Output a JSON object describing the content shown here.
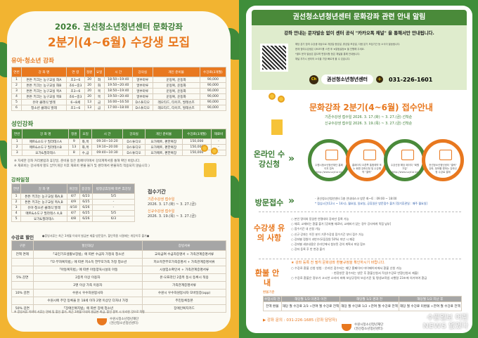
{
  "left": {
    "title": "2026. 권선청소년청년센터 문화강좌",
    "subtitle": "2분기(4~6월) 수강생 모집",
    "youth": {
      "heading": "유아·청소년 강좌",
      "columns": [
        "연번",
        "강 좌 명",
        "연 령",
        "정원",
        "요일",
        "시 간",
        "강의실",
        "개인 준비물",
        "수강료(3개월)"
      ],
      "rows": [
        [
          "1",
          "튼튼 키크는 농구교실 화A",
          "초3~6",
          "20",
          "화",
          "18:50~19:40",
          "얼쑤마루",
          "운동복, 운동화",
          "90,000"
        ],
        [
          "2",
          "튼튼 키크는 농구교실 화B",
          "초6~중3",
          "20",
          "화",
          "19:50~20:40",
          "얼쑤마루",
          "운동복, 운동화",
          "90,000"
        ],
        [
          "3",
          "튼튼 키크는 농구교실 목A",
          "초3~6",
          "20",
          "목",
          "18:50~19:40",
          "얼쑤마루",
          "운동복, 운동화",
          "90,000"
        ],
        [
          "4",
          "튼튼 키크는 농구교실 목B",
          "초6~중3",
          "20",
          "목",
          "19:50~20:40",
          "얼쑤마루",
          "운동복, 운동화",
          "90,000"
        ],
        [
          "5",
          "유아 클래식 발레",
          "6~8세",
          "13",
          "금",
          "16:00~16:50",
          "D스튜디오",
          "레오타드, 타이즈, 발레슈즈",
          "90,000"
        ],
        [
          "6",
          "청소년 클래식 발레",
          "초1~6",
          "13",
          "금",
          "17:00~18:00",
          "D스튜디오",
          "레오타드, 타이즈, 발레슈즈",
          "90,000"
        ]
      ]
    },
    "adult": {
      "heading": "성인강좌",
      "columns": [
        "연번",
        "강 좌 명",
        "정원",
        "요일",
        "시 간",
        "강의실",
        "개인 준비물",
        "수강료(3개월)",
        "재료비"
      ],
      "rows": [
        [
          "1",
          "매트&소도구 필라테스A",
          "9",
          "화,목",
          "09:30~10:20",
          "D스튜디오",
          "요가매트, 편한복장",
          "150,000",
          "-"
        ],
        [
          "2",
          "매트&소도구 필라테스B",
          "13",
          "화,목",
          "19:10~20:00",
          "D스튜디오",
          "요가매트, 편한복장",
          "150,000",
          "-"
        ],
        [
          "3",
          "요가&필라테스",
          "8",
          "수,금",
          "09:40~10:30",
          "D스튜디오",
          "요가매트, 편한복장",
          "150,000",
          "-"
        ]
      ]
    },
    "notes": [
      "※ 자세한 강좌 커리큘럼과 휴강일, 준비물 등은 홈페이지에서 강의계획서를 통해 확인 바랍니다.",
      "※ 재료비는 강사에게 별도 납부(개강 이후 재료비 환불 불가 및 센터에서 환불처리 적용되지 않습니다.)"
    ],
    "schedule": {
      "heading": "강좌일정",
      "columns": [
        "연번",
        "강 좌 명",
        "개강일",
        "종강일",
        "법정공휴일에 따른 휴강일"
      ],
      "rows": [
        [
          "1",
          "튼튼 키크는 농구교실 화A,B",
          "4/7",
          "6/23",
          "5/5"
        ],
        [
          "2",
          "튼튼 키크는 농구교실 목A,B",
          "4/9",
          "6/25",
          "-"
        ],
        [
          "3",
          "유아·청소년 클래식 발레",
          "4/10",
          "6/26",
          "-"
        ],
        [
          "4",
          "매트&소도구 필라테스 A,B",
          "4/7",
          "6/25",
          "5/5"
        ],
        [
          "5",
          "요가&필라테스",
          "4/8",
          "6/26",
          "6/3"
        ]
      ]
    },
    "period": {
      "heading": "접수기간",
      "existing_label": "기존수강생 접수일",
      "existing_date": "2026. 3. 17.(화) ~ 3. 27.(금)",
      "new_label": "신규수강생 접수일",
      "new_date": "2026. 3. 19.(목) ~ 3. 27.(금)"
    },
    "discount": {
      "heading": "수강료 할인",
      "note": "●증빙서류는 최근 3개월 이내의 발급본 제출·방문접수, 할인적용 사결제는 개강이후 불가●",
      "columns": [
        "구분",
        "할인대상",
        "증빙서류"
      ],
      "rows": [
        [
          "전액 면제",
          "「국민기초생활보장법」에 따른 수급자 가정의 청소년",
          "교육급여 수급자증명서 + 가족관계증명서류"
        ],
        [
          "",
          "「모·부자복지법」에 따른 저소득 한부모가족 가정 청소년",
          "저소득한부모가족증명서 + 가족관계증명서류"
        ],
        [
          "",
          "「아동복지법」에 따른 아동양육시설의 아동",
          "시설입소확인서 + 가족관계증명서류"
        ],
        [
          "5% 감면",
          "2종목 이상 이용자",
          "온·오프라인 2종목 동시 등록시 적용"
        ],
        [
          "",
          "2명 이상 가족 이용자",
          "가족관계증명서류"
        ],
        [
          "10% 감면",
          "수원시 우수자원봉사자",
          "수원시 우수자원봉사자 모바일증(app)"
        ],
        [
          "",
          "수원시에 주민 등록을 둔 18세 이하 2명 이상인 다자녀 가정",
          "주민등록등본"
        ],
        [
          "50% 감면",
          "「장애인복지법」에 따른 장애 청소년",
          "장애인복지카드"
        ]
      ],
      "footer": "※ 증빙서류 이외의 서류는 면제 및 할인 불가, 최근 3개월 이내의 발급본 최급, 할인 중복 시 유리한 것으로 적용"
    },
    "org": {
      "name": "수원시청소년청년재단",
      "sub": "(권선청소년청년센터)"
    }
  },
  "right": {
    "header": "권선청소년청년센터 문화강좌 관련 안내 알림",
    "notice": "강좌 안내는 문자발송 없이 센터 공식 \"카카오톡 채널\" 을 통해서만 안내됩니다.",
    "notice_lines": [
      "해당 분기 참여 수강생 대상으로 개강일·종강일, 휴강일·보강일, 다음 분기 모집기간 등 소식이 발송됩니다.",
      "현재 참여수강생은 QR코드를 스캔 후 ★알림설정★ 을 진행해 주세요.",
      "*별도 문자 발송은 없으며 변경사항 등은 채널을 통해 안내됩니다.",
      "채널 추가시 센터의 소식을 가장 빠르게 볼 수 있습니다."
    ],
    "channel_badge": "Ch",
    "channel_name": "권선청소년청년센터",
    "channel_add": "+",
    "phone": "031-226-1601",
    "reg_title": "문화강좌 2분기(4~6월) 접수안내",
    "reg_existing": "기존수강생 접수일   2026. 3. 17.(화) ~ 3. 27.(금) 선착순",
    "reg_new": "신규수강생 접수일   2026. 3. 19.(목) ~ 3. 27.(금) 선착순",
    "online_label": "온라인 수강신청",
    "steps": [
      "수원시청소년청년재단 홈페이지 접속 (http://www.suyf.or.kr)",
      "홈페이지 오른쪽 통합예약 또는 회원 강좌신청 및 수강예약 \"클릭\"",
      "수강신청 해당 페이지 \"회원가입\" (http://www.suyf.or.kr)",
      "권선청소년청년센터 \"클릭\" 강좌, 정보를 원하는 강좌신청 수강료 결제"
    ],
    "visit_label": "방문접수",
    "visit_lines": [
      "- 권선청소년청년센터 1층 안내데스크 방문  화~토 : 09:00 ~ 18:00",
      "* 점심시간(12시 ~ 14시), 월요일, 일요일, 공휴일은 방문접수 불가 [정기휴관일 : 매주 월요일]"
    ],
    "caution_label": "수강생 유의 사항",
    "cautions": [
      "○ 본인 명의와 동일한 연령대의 강좌만 등록 가능",
      "○ 재료, 교재비는 환불 불가 [강좌별 재료비, 교재비가 있는 경우 강사에게 직접 납부]",
      "○ 접수기간 내 신청 가능",
      "○ 신규 강좌는 이전 분기 기존수강생 접수기간 부터 접수 가능",
      "○ 강좌별 정원이 과반수(모집정원 50%) 미만 시 폐강",
      "○ 강좌별 세부내용은 온라인에서 첨부된 강의 계획서 파일 참조",
      "○ 강좌 등록 후 반 변경 불가"
    ],
    "refund_label": "환불 안내",
    "refund_head": "★ 강좌 등록 전 필히 문화강좌 환불규정을 확인하시기 바랍니다.",
    "refund_lines": [
      "○ 수강료 환불 신청 방법   - 온라인 접수자는 재단 홈페이지 마이페이지에서 환불 신청 가능",
      "- 현장방문 접수자는 방문 후 환불신청서 작성(수강료 반환신청서 제출)",
      "○ 수강료 환불은 정부가 고시한 소비자 피해 보상규정의 보상기준 및 평생교육법 시행령 23조에 의거하여 환급"
    ],
    "refund_table_label": "환불기준",
    "refund_columns": [
      "수업시작 전",
      "해당월 1/3 미경과 이전",
      "해당월 1/2 경과 전",
      "해당월 1/2 지난 후"
    ],
    "refund_row": [
      "전액 환불",
      "해당 월 수강료 2/3 +잔여 월 수강료 전액",
      "해당 월 수강료 1/2 +잔여 월 수강료 전액",
      "해당 월 수강료 미환불 +잔여 월 수강료 전액"
    ],
    "inquiry": "▶ 강좌 문의 : 031-226-1685 (강좌 담당자)",
    "watermark": "수원일보 어린NEWS 없었다"
  },
  "colors": {
    "orange": "#e8781f",
    "green": "#3c7d35",
    "yellow": "#f2b431"
  }
}
